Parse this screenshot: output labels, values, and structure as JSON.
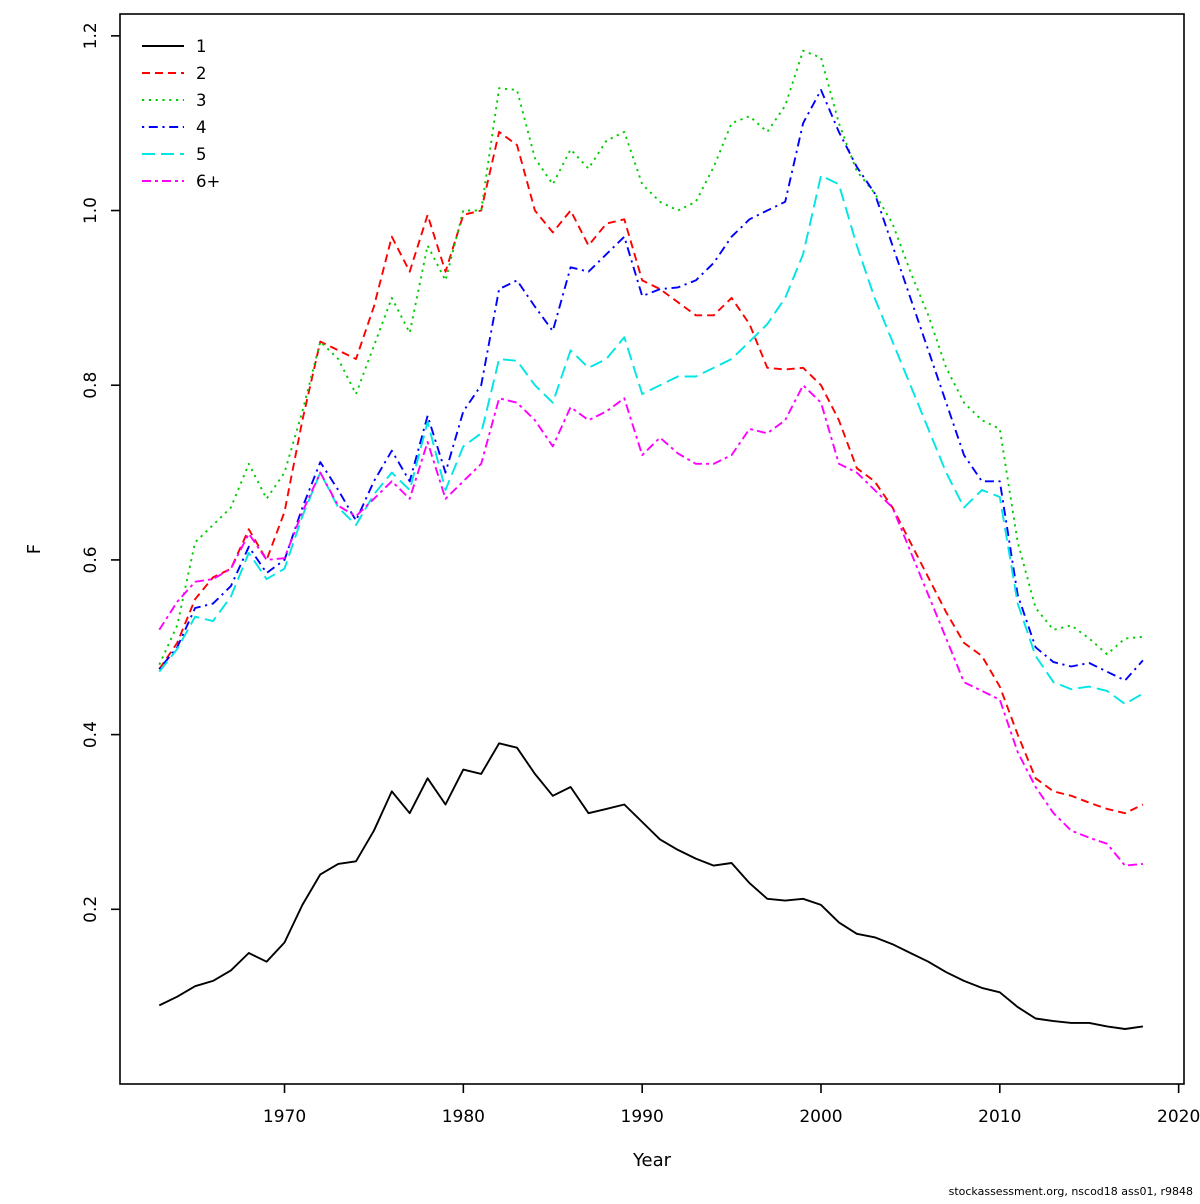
{
  "figure": {
    "background": "#ffffff",
    "footer": "stockassessment.org, nscod18  ass01, r9848"
  },
  "chart_data": {
    "type": "line",
    "title": "",
    "xlabel": "Year",
    "ylabel": "F",
    "xlim": [
      1960.8,
      2020.3
    ],
    "ylim": [
      0,
      1.225
    ],
    "x_ticks": [
      1970,
      1980,
      1990,
      2000,
      2010,
      2020
    ],
    "y_ticks": [
      0.2,
      0.4,
      0.6,
      0.8,
      1.0,
      1.2
    ],
    "grid": false,
    "legend_position": "top-left",
    "x": [
      1963,
      1964,
      1965,
      1966,
      1967,
      1968,
      1969,
      1970,
      1971,
      1972,
      1973,
      1974,
      1975,
      1976,
      1977,
      1978,
      1979,
      1980,
      1981,
      1982,
      1983,
      1984,
      1985,
      1986,
      1987,
      1988,
      1989,
      1990,
      1991,
      1992,
      1993,
      1994,
      1995,
      1996,
      1997,
      1998,
      1999,
      2000,
      2001,
      2002,
      2003,
      2004,
      2005,
      2006,
      2007,
      2008,
      2009,
      2010,
      2011,
      2012,
      2013,
      2014,
      2015,
      2016,
      2017,
      2018
    ],
    "series": [
      {
        "name": "1",
        "color": "#000000",
        "linetype": "solid",
        "values": [
          0.09,
          0.1,
          0.112,
          0.118,
          0.13,
          0.15,
          0.14,
          0.162,
          0.205,
          0.24,
          0.252,
          0.255,
          0.29,
          0.335,
          0.31,
          0.35,
          0.32,
          0.36,
          0.355,
          0.39,
          0.385,
          0.355,
          0.33,
          0.34,
          0.31,
          0.315,
          0.32,
          0.3,
          0.28,
          0.268,
          0.258,
          0.25,
          0.253,
          0.23,
          0.212,
          0.21,
          0.212,
          0.205,
          0.185,
          0.172,
          0.168,
          0.16,
          0.15,
          0.14,
          0.128,
          0.118,
          0.11,
          0.105,
          0.088,
          0.075,
          0.072,
          0.07,
          0.07,
          0.066,
          0.063,
          0.066
        ]
      },
      {
        "name": "2",
        "color": "#ff0000",
        "linetype": "dashed",
        "values": [
          0.475,
          0.505,
          0.555,
          0.58,
          0.59,
          0.635,
          0.6,
          0.655,
          0.76,
          0.85,
          0.84,
          0.83,
          0.89,
          0.97,
          0.93,
          0.995,
          0.93,
          0.995,
          1.0,
          1.09,
          1.075,
          1.0,
          0.975,
          1.0,
          0.96,
          0.985,
          0.99,
          0.92,
          0.91,
          0.895,
          0.88,
          0.88,
          0.9,
          0.87,
          0.82,
          0.818,
          0.82,
          0.8,
          0.76,
          0.705,
          0.69,
          0.66,
          0.62,
          0.58,
          0.54,
          0.505,
          0.49,
          0.455,
          0.4,
          0.35,
          0.335,
          0.33,
          0.322,
          0.315,
          0.31,
          0.32
        ]
      },
      {
        "name": "3",
        "color": "#00cd00",
        "linetype": "dotted",
        "values": [
          0.48,
          0.525,
          0.62,
          0.64,
          0.66,
          0.71,
          0.67,
          0.7,
          0.77,
          0.85,
          0.83,
          0.79,
          0.845,
          0.9,
          0.86,
          0.96,
          0.92,
          1.0,
          1.0,
          1.14,
          1.138,
          1.06,
          1.03,
          1.07,
          1.048,
          1.08,
          1.09,
          1.03,
          1.01,
          1.0,
          1.01,
          1.05,
          1.1,
          1.108,
          1.09,
          1.12,
          1.183,
          1.175,
          1.1,
          1.045,
          1.02,
          0.985,
          0.93,
          0.88,
          0.82,
          0.78,
          0.76,
          0.75,
          0.62,
          0.545,
          0.52,
          0.525,
          0.51,
          0.492,
          0.51,
          0.512
        ]
      },
      {
        "name": "4",
        "color": "#0000ff",
        "linetype": "dotdash",
        "values": [
          0.475,
          0.5,
          0.545,
          0.55,
          0.57,
          0.615,
          0.585,
          0.6,
          0.66,
          0.712,
          0.68,
          0.645,
          0.69,
          0.725,
          0.69,
          0.765,
          0.7,
          0.77,
          0.8,
          0.91,
          0.92,
          0.89,
          0.862,
          0.935,
          0.93,
          0.95,
          0.97,
          0.902,
          0.91,
          0.912,
          0.92,
          0.94,
          0.97,
          0.99,
          1.0,
          1.01,
          1.1,
          1.138,
          1.09,
          1.05,
          1.02,
          0.96,
          0.9,
          0.84,
          0.78,
          0.72,
          0.69,
          0.69,
          0.56,
          0.5,
          0.483,
          0.478,
          0.482,
          0.472,
          0.462,
          0.485
        ]
      },
      {
        "name": "5",
        "color": "#00e5e5",
        "linetype": "longdash",
        "values": [
          0.472,
          0.498,
          0.535,
          0.53,
          0.558,
          0.608,
          0.578,
          0.59,
          0.65,
          0.7,
          0.66,
          0.64,
          0.675,
          0.7,
          0.68,
          0.758,
          0.68,
          0.73,
          0.745,
          0.83,
          0.828,
          0.8,
          0.78,
          0.84,
          0.82,
          0.83,
          0.855,
          0.79,
          0.8,
          0.81,
          0.81,
          0.82,
          0.83,
          0.85,
          0.87,
          0.9,
          0.95,
          1.04,
          1.03,
          0.96,
          0.9,
          0.85,
          0.8,
          0.75,
          0.7,
          0.66,
          0.68,
          0.672,
          0.55,
          0.49,
          0.46,
          0.452,
          0.455,
          0.45,
          0.435,
          0.447
        ]
      },
      {
        "name": "6+",
        "color": "#ff00ff",
        "linetype": "twodash",
        "values": [
          0.52,
          0.552,
          0.575,
          0.578,
          0.59,
          0.63,
          0.6,
          0.602,
          0.655,
          0.7,
          0.662,
          0.65,
          0.67,
          0.69,
          0.67,
          0.735,
          0.67,
          0.69,
          0.71,
          0.785,
          0.78,
          0.76,
          0.73,
          0.775,
          0.76,
          0.77,
          0.785,
          0.72,
          0.74,
          0.722,
          0.71,
          0.71,
          0.72,
          0.75,
          0.745,
          0.76,
          0.8,
          0.78,
          0.71,
          0.7,
          0.68,
          0.66,
          0.61,
          0.56,
          0.51,
          0.46,
          0.45,
          0.44,
          0.38,
          0.34,
          0.31,
          0.29,
          0.282,
          0.275,
          0.25,
          0.252
        ]
      }
    ]
  }
}
